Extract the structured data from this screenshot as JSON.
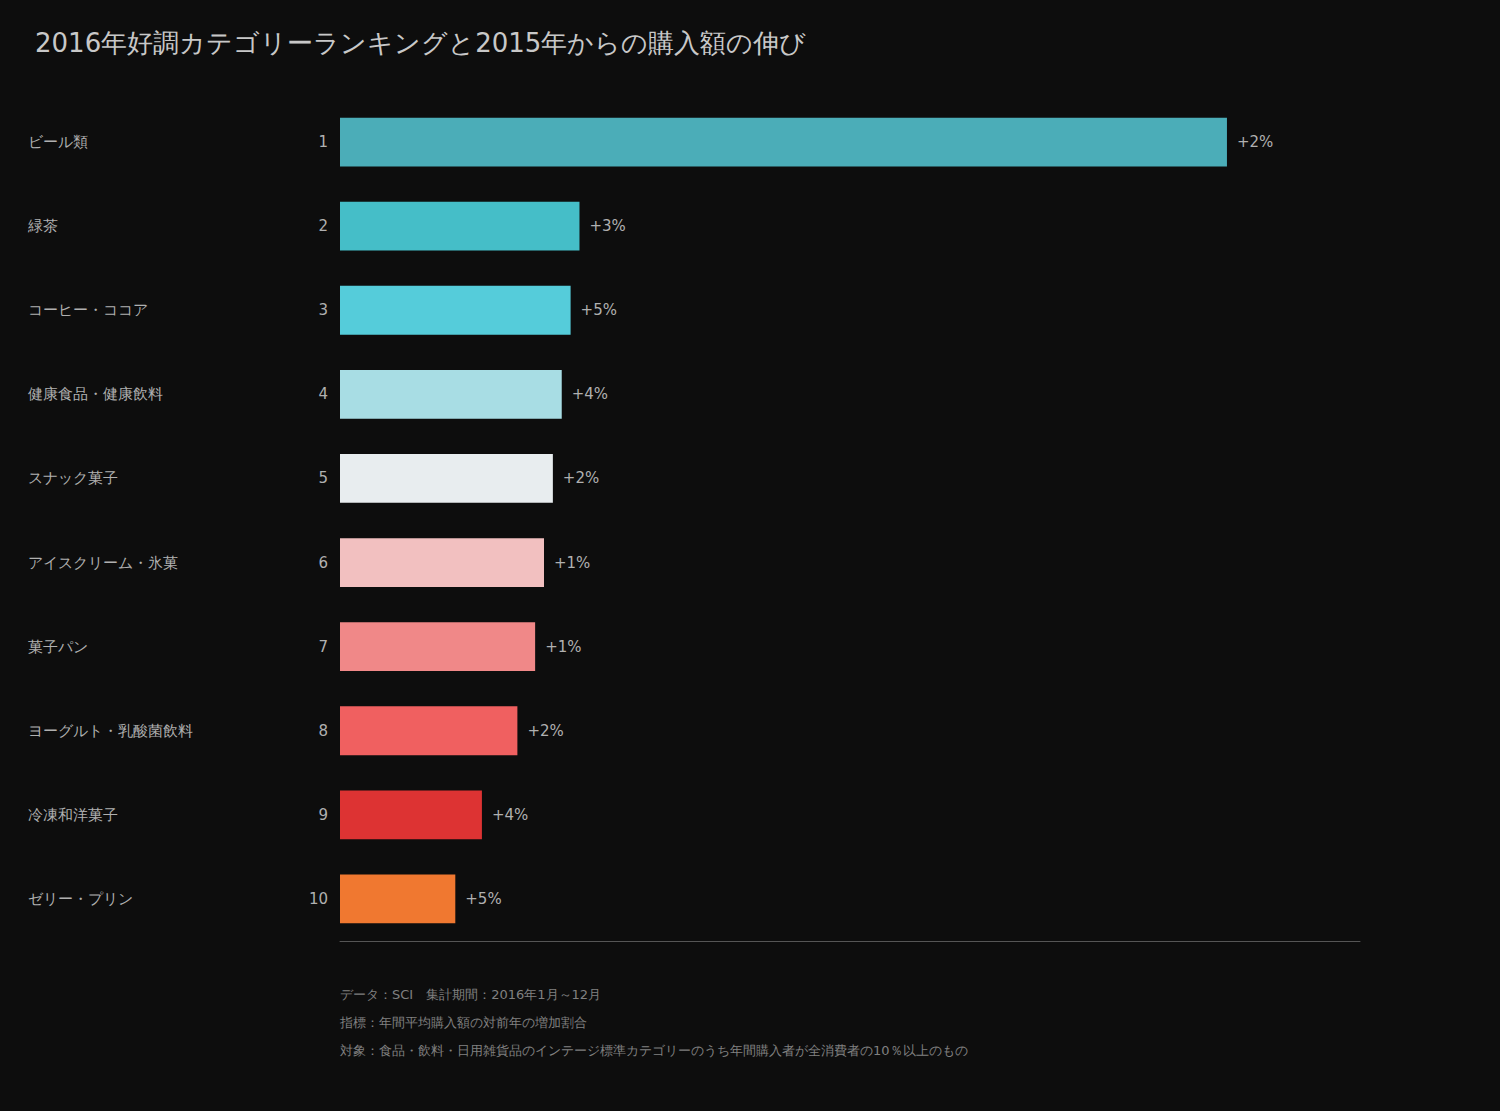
{
  "chart_data": {
    "type": "bar",
    "orientation": "horizontal",
    "title": "2016年好調カテゴリーランキングと2015年からの購入額の伸び",
    "categories": [
      "ビール類",
      "緑茶",
      "コーヒー・ココア",
      "健康食品・健康飲料",
      "スナック菓子",
      "アイスクリーム・氷菓",
      "菓子パン",
      "ヨーグルト・乳酸菌飲料",
      "冷凍和洋菓子",
      "ゼリー・プリン"
    ],
    "ranks": [
      "1",
      "2",
      "3",
      "4",
      "5",
      "6",
      "7",
      "8",
      "9",
      "10"
    ],
    "values": [
      100,
      27,
      26,
      25,
      24,
      23,
      22,
      20,
      16,
      13
    ],
    "growth_labels": [
      "+2%",
      "+3%",
      "+5%",
      "+4%",
      "+2%",
      "+1%",
      "+1%",
      "+2%",
      "+4%",
      "+5%"
    ],
    "colors": [
      "#4BADB8",
      "#45BEC8",
      "#55CCDA",
      "#A8DDE4",
      "#E8EDEF",
      "#F2C0C0",
      "#F08888",
      "#F06060",
      "#DD3333",
      "#F07830"
    ],
    "xlim": [
      0,
      115
    ],
    "grid": false,
    "tick_labels": "y",
    "footnotes": [
      "データ：SCI　集計期間：2016年1月～12月",
      "指標：年間平均購入額の対前年の増加割合",
      "対象：食品・飲料・日用雑貨品のインテージ標準カテゴリーのうち年間購入者が全消費者の10％以上のもの"
    ]
  }
}
